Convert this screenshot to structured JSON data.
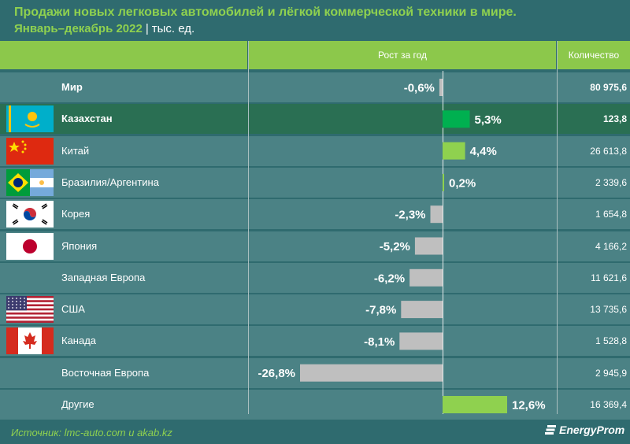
{
  "header": {
    "title": "Продажи новых легковых автомобилей и лёгкой коммерческой техники в мире.",
    "period": "Январь–декабрь 2022",
    "separator": "|",
    "units": "тыс. ед."
  },
  "columns": {
    "growth": "Рост за год",
    "quantity": "Количество"
  },
  "colors": {
    "positive": "#00b050",
    "positive_light": "#8fd14f",
    "negative": "#bfbfbf",
    "highlight_row": "#2a6f53"
  },
  "chart_data": {
    "type": "bar",
    "orientation": "horizontal",
    "title": "Продажи новых легковых автомобилей и лёгкой коммерческой техники в мире. Январь–декабрь 2022",
    "units": "тыс. ед.",
    "xlabel": "Рост за год",
    "categories": [
      "Мир",
      "Казахстан",
      "Китай",
      "Бразилия/Аргентина",
      "Корея",
      "Япония",
      "Западная Европа",
      "США",
      "Канада",
      "Восточная Европа",
      "Другие"
    ],
    "growth_pct": [
      -0.6,
      5.3,
      4.4,
      0.2,
      -2.3,
      -5.2,
      -6.2,
      -7.8,
      -8.1,
      -26.8,
      12.6
    ],
    "growth_labels": [
      "-0,6%",
      "5,3%",
      "4,4%",
      "0,2%",
      "-2,3%",
      "-5,2%",
      "-6,2%",
      "-7,8%",
      "-8,1%",
      "-26,8%",
      "12,6%"
    ],
    "quantity": [
      80975.6,
      123.8,
      26613.8,
      2339.6,
      1654.8,
      4166.2,
      11621.6,
      13735.6,
      1528.8,
      2945.9,
      16369.4
    ],
    "quantity_labels": [
      "80 975,6",
      "123,8",
      "26 613,8",
      "2 339,6",
      "1 654,8",
      "4 166,2",
      "11 621,6",
      "13 735,6",
      "1 528,8",
      "2 945,9",
      "16 369,4"
    ],
    "xlim": [
      -30,
      15
    ]
  },
  "rows": [
    {
      "name": "Мир",
      "flag": "none",
      "bold": true
    },
    {
      "name": "Казахстан",
      "flag": "kazakhstan-flag-icon",
      "bold": true,
      "highlight": true
    },
    {
      "name": "Китай",
      "flag": "china-flag-icon"
    },
    {
      "name": "Бразилия/Аргентина",
      "flag": "brazil-argentina-flag-icon"
    },
    {
      "name": "Корея",
      "flag": "korea-flag-icon"
    },
    {
      "name": "Япония",
      "flag": "japan-flag-icon"
    },
    {
      "name": "Западная Европа",
      "flag": "none"
    },
    {
      "name": "США",
      "flag": "usa-flag-icon"
    },
    {
      "name": "Канада",
      "flag": "canada-flag-icon"
    },
    {
      "name": "Восточная Европа",
      "flag": "none"
    },
    {
      "name": "Другие",
      "flag": "none"
    }
  ],
  "footer": {
    "source": "Источник: lmc-auto.com и akab.kz",
    "logo": "EnergyProm"
  }
}
